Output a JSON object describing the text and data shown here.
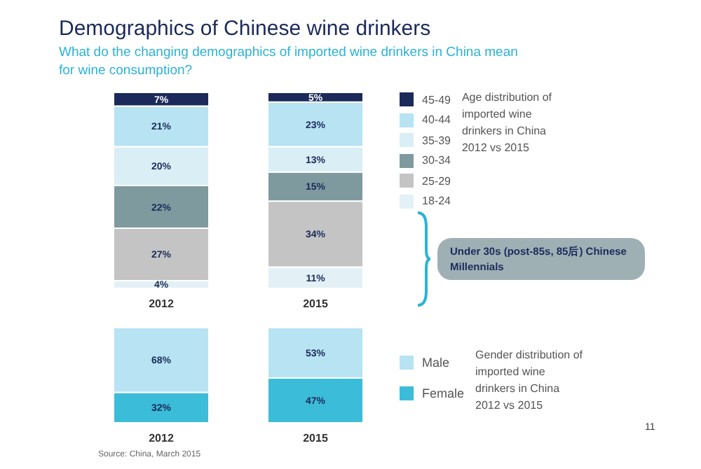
{
  "chart_data": [
    {
      "type": "bar",
      "stacked": true,
      "title": "Demographics of Chinese wine drinkers",
      "subtitle": "What do the changing demographics of imported wine drinkers in China mean for wine consumption?",
      "legend_title": "Age distribution of imported wine drinkers in China 2012 vs 2015",
      "legend": "right",
      "categories": [
        "2012",
        "2015"
      ],
      "series": [
        {
          "name": "18-24",
          "color": "#e3f1f6",
          "values": [
            4,
            11
          ],
          "value_labels": [
            "4%",
            "11%"
          ]
        },
        {
          "name": "25-29",
          "color": "#c4c4c4",
          "values": [
            27,
            34
          ],
          "value_labels": [
            "27%",
            "34%"
          ]
        },
        {
          "name": "30-34",
          "color": "#7f9a9f",
          "values": [
            22,
            15
          ],
          "value_labels": [
            "22%",
            "15%"
          ]
        },
        {
          "name": "35-39",
          "color": "#d9eef5",
          "values": [
            20,
            13
          ],
          "value_labels": [
            "20%",
            "13%"
          ]
        },
        {
          "name": "40-44",
          "color": "#b7e3f3",
          "values": [
            21,
            23
          ],
          "value_labels": [
            "21%",
            "23%"
          ]
        },
        {
          "name": "45-49",
          "color": "#1b2a5a",
          "values": [
            7,
            5
          ],
          "value_labels": [
            "7%",
            "5%"
          ]
        }
      ],
      "annotations": [
        "Under 30s (post-85s, 85后) Chinese Millennials"
      ]
    },
    {
      "type": "bar",
      "stacked": true,
      "legend_title": "Gender distribution of imported wine drinkers in China 2012 vs 2015",
      "legend": "right",
      "categories": [
        "2012",
        "2015"
      ],
      "series": [
        {
          "name": "Female",
          "color": "#3bbcd9",
          "values": [
            32,
            47
          ],
          "value_labels": [
            "32%",
            "47%"
          ]
        },
        {
          "name": "Male",
          "color": "#b7e3f3",
          "values": [
            68,
            53
          ],
          "value_labels": [
            "68%",
            "53%"
          ]
        }
      ],
      "annotations": [
        "Source: China, March 2015",
        "11"
      ]
    }
  ]
}
